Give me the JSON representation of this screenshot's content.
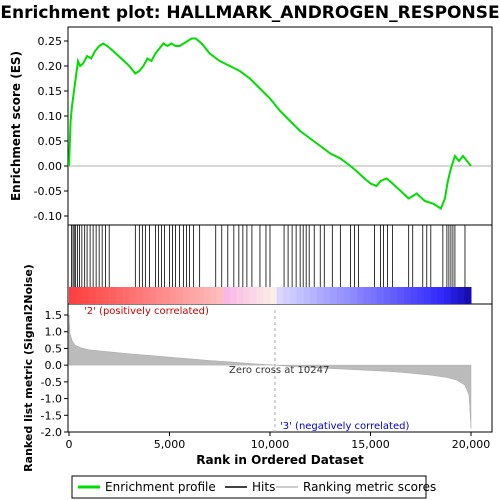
{
  "chart_data": {
    "type": "line",
    "title": "Enrichment plot: HALLMARK_ANDROGEN_RESPONSE",
    "xlabel": "Rank in Ordered Dataset",
    "ylabel_top": "Enrichment score (ES)",
    "ylabel_bottom": "Ranked list metric (Signal2Noise)",
    "xlim": [
      0,
      20000
    ],
    "x_ticks": [
      0,
      5000,
      10000,
      15000,
      20000
    ],
    "x_tick_labels": [
      "0",
      "5,000",
      "10,000",
      "15,000",
      "20,000"
    ],
    "es_ylim": [
      -0.1,
      0.25
    ],
    "es_ticks": [
      -0.1,
      -0.05,
      0.0,
      0.05,
      0.1,
      0.15,
      0.2,
      0.25
    ],
    "es_tick_labels": [
      "-0.10",
      "-0.05",
      "0.00",
      "0.05",
      "0.10",
      "0.15",
      "0.20",
      "0.25"
    ],
    "metric_ylim": [
      -2.0,
      1.5
    ],
    "metric_ticks": [
      -2.0,
      -1.5,
      -1.0,
      -0.5,
      0.0,
      0.5,
      1.0,
      1.5
    ],
    "metric_tick_labels": [
      "-2.0",
      "-1.5",
      "-1.0",
      "-0.5",
      "0.0",
      "0.5",
      "1.0",
      "1.5"
    ],
    "series": [
      {
        "name": "Enrichment profile",
        "color": "#00dd00",
        "x": [
          0,
          80,
          150,
          250,
          350,
          450,
          550,
          700,
          900,
          1100,
          1300,
          1500,
          1700,
          1900,
          2200,
          2600,
          3000,
          3300,
          3500,
          3700,
          3900,
          4100,
          4300,
          4500,
          4700,
          4900,
          5100,
          5300,
          5500,
          5700,
          5900,
          6100,
          6300,
          6600,
          7000,
          7500,
          8000,
          8500,
          9000,
          9500,
          10000,
          10500,
          11000,
          11500,
          12000,
          12500,
          13000,
          13500,
          14000,
          14300,
          14700,
          15000,
          15300,
          15500,
          15800,
          16100,
          16500,
          16900,
          17300,
          17700,
          18100,
          18500,
          18700,
          18850,
          19000,
          19200,
          19400,
          19600,
          19800,
          20000
        ],
        "y": [
          0.0,
          0.09,
          0.12,
          0.15,
          0.18,
          0.21,
          0.2,
          0.205,
          0.22,
          0.215,
          0.23,
          0.24,
          0.245,
          0.24,
          0.23,
          0.215,
          0.2,
          0.185,
          0.19,
          0.2,
          0.215,
          0.21,
          0.225,
          0.235,
          0.245,
          0.24,
          0.245,
          0.24,
          0.24,
          0.245,
          0.25,
          0.255,
          0.255,
          0.245,
          0.225,
          0.21,
          0.2,
          0.19,
          0.175,
          0.155,
          0.135,
          0.11,
          0.09,
          0.07,
          0.055,
          0.04,
          0.025,
          0.015,
          0.0,
          -0.01,
          -0.025,
          -0.035,
          -0.04,
          -0.03,
          -0.025,
          -0.035,
          -0.05,
          -0.065,
          -0.055,
          -0.07,
          -0.075,
          -0.085,
          -0.065,
          -0.03,
          -0.005,
          0.02,
          0.01,
          0.02,
          0.01,
          0.0
        ]
      }
    ],
    "hits_positions": [
      120,
      200,
      260,
      330,
      420,
      520,
      640,
      780,
      900,
      1050,
      1200,
      1350,
      1500,
      1650,
      1820,
      2000,
      3300,
      3500,
      3650,
      3800,
      4000,
      4300,
      4450,
      4600,
      4750,
      5000,
      5150,
      5300,
      5500,
      5700,
      5850,
      6000,
      6200,
      6500,
      7300,
      7600,
      7900,
      8200,
      8450,
      8650,
      8850,
      9100,
      9500,
      9800,
      10000,
      10700,
      10900,
      11100,
      11300,
      11500,
      11650,
      11800,
      11950,
      12200,
      12500,
      12700,
      13100,
      13500,
      14000,
      14200,
      14400,
      15200,
      15500,
      15650,
      15850,
      16100,
      16900,
      17100,
      17600,
      17800,
      18000,
      18600,
      18800,
      18900,
      19000,
      19100,
      19200,
      19700
    ],
    "metric_series": {
      "x": [
        0,
        50,
        150,
        300,
        600,
        1000,
        2000,
        3000,
        4000,
        5000,
        6000,
        7000,
        8000,
        9000,
        10000,
        10247,
        11000,
        12000,
        13000,
        14000,
        15000,
        16000,
        17000,
        18000,
        18800,
        19300,
        19700,
        19900,
        20000
      ],
      "y": [
        1.5,
        0.95,
        0.75,
        0.6,
        0.52,
        0.46,
        0.4,
        0.34,
        0.29,
        0.24,
        0.19,
        0.14,
        0.1,
        0.05,
        0.01,
        0.0,
        -0.04,
        -0.07,
        -0.1,
        -0.13,
        -0.16,
        -0.19,
        -0.24,
        -0.3,
        -0.37,
        -0.45,
        -0.6,
        -0.9,
        -1.9
      ]
    },
    "zero_cross": 10247,
    "annotations": {
      "positive": "'2' (positively correlated)",
      "zero": "Zero cross at 10247",
      "negative": "'3' (negatively correlated)"
    },
    "legend": [
      "Enrichment profile",
      "Hits",
      "Ranking metric scores"
    ],
    "legend_position": "bottom"
  }
}
